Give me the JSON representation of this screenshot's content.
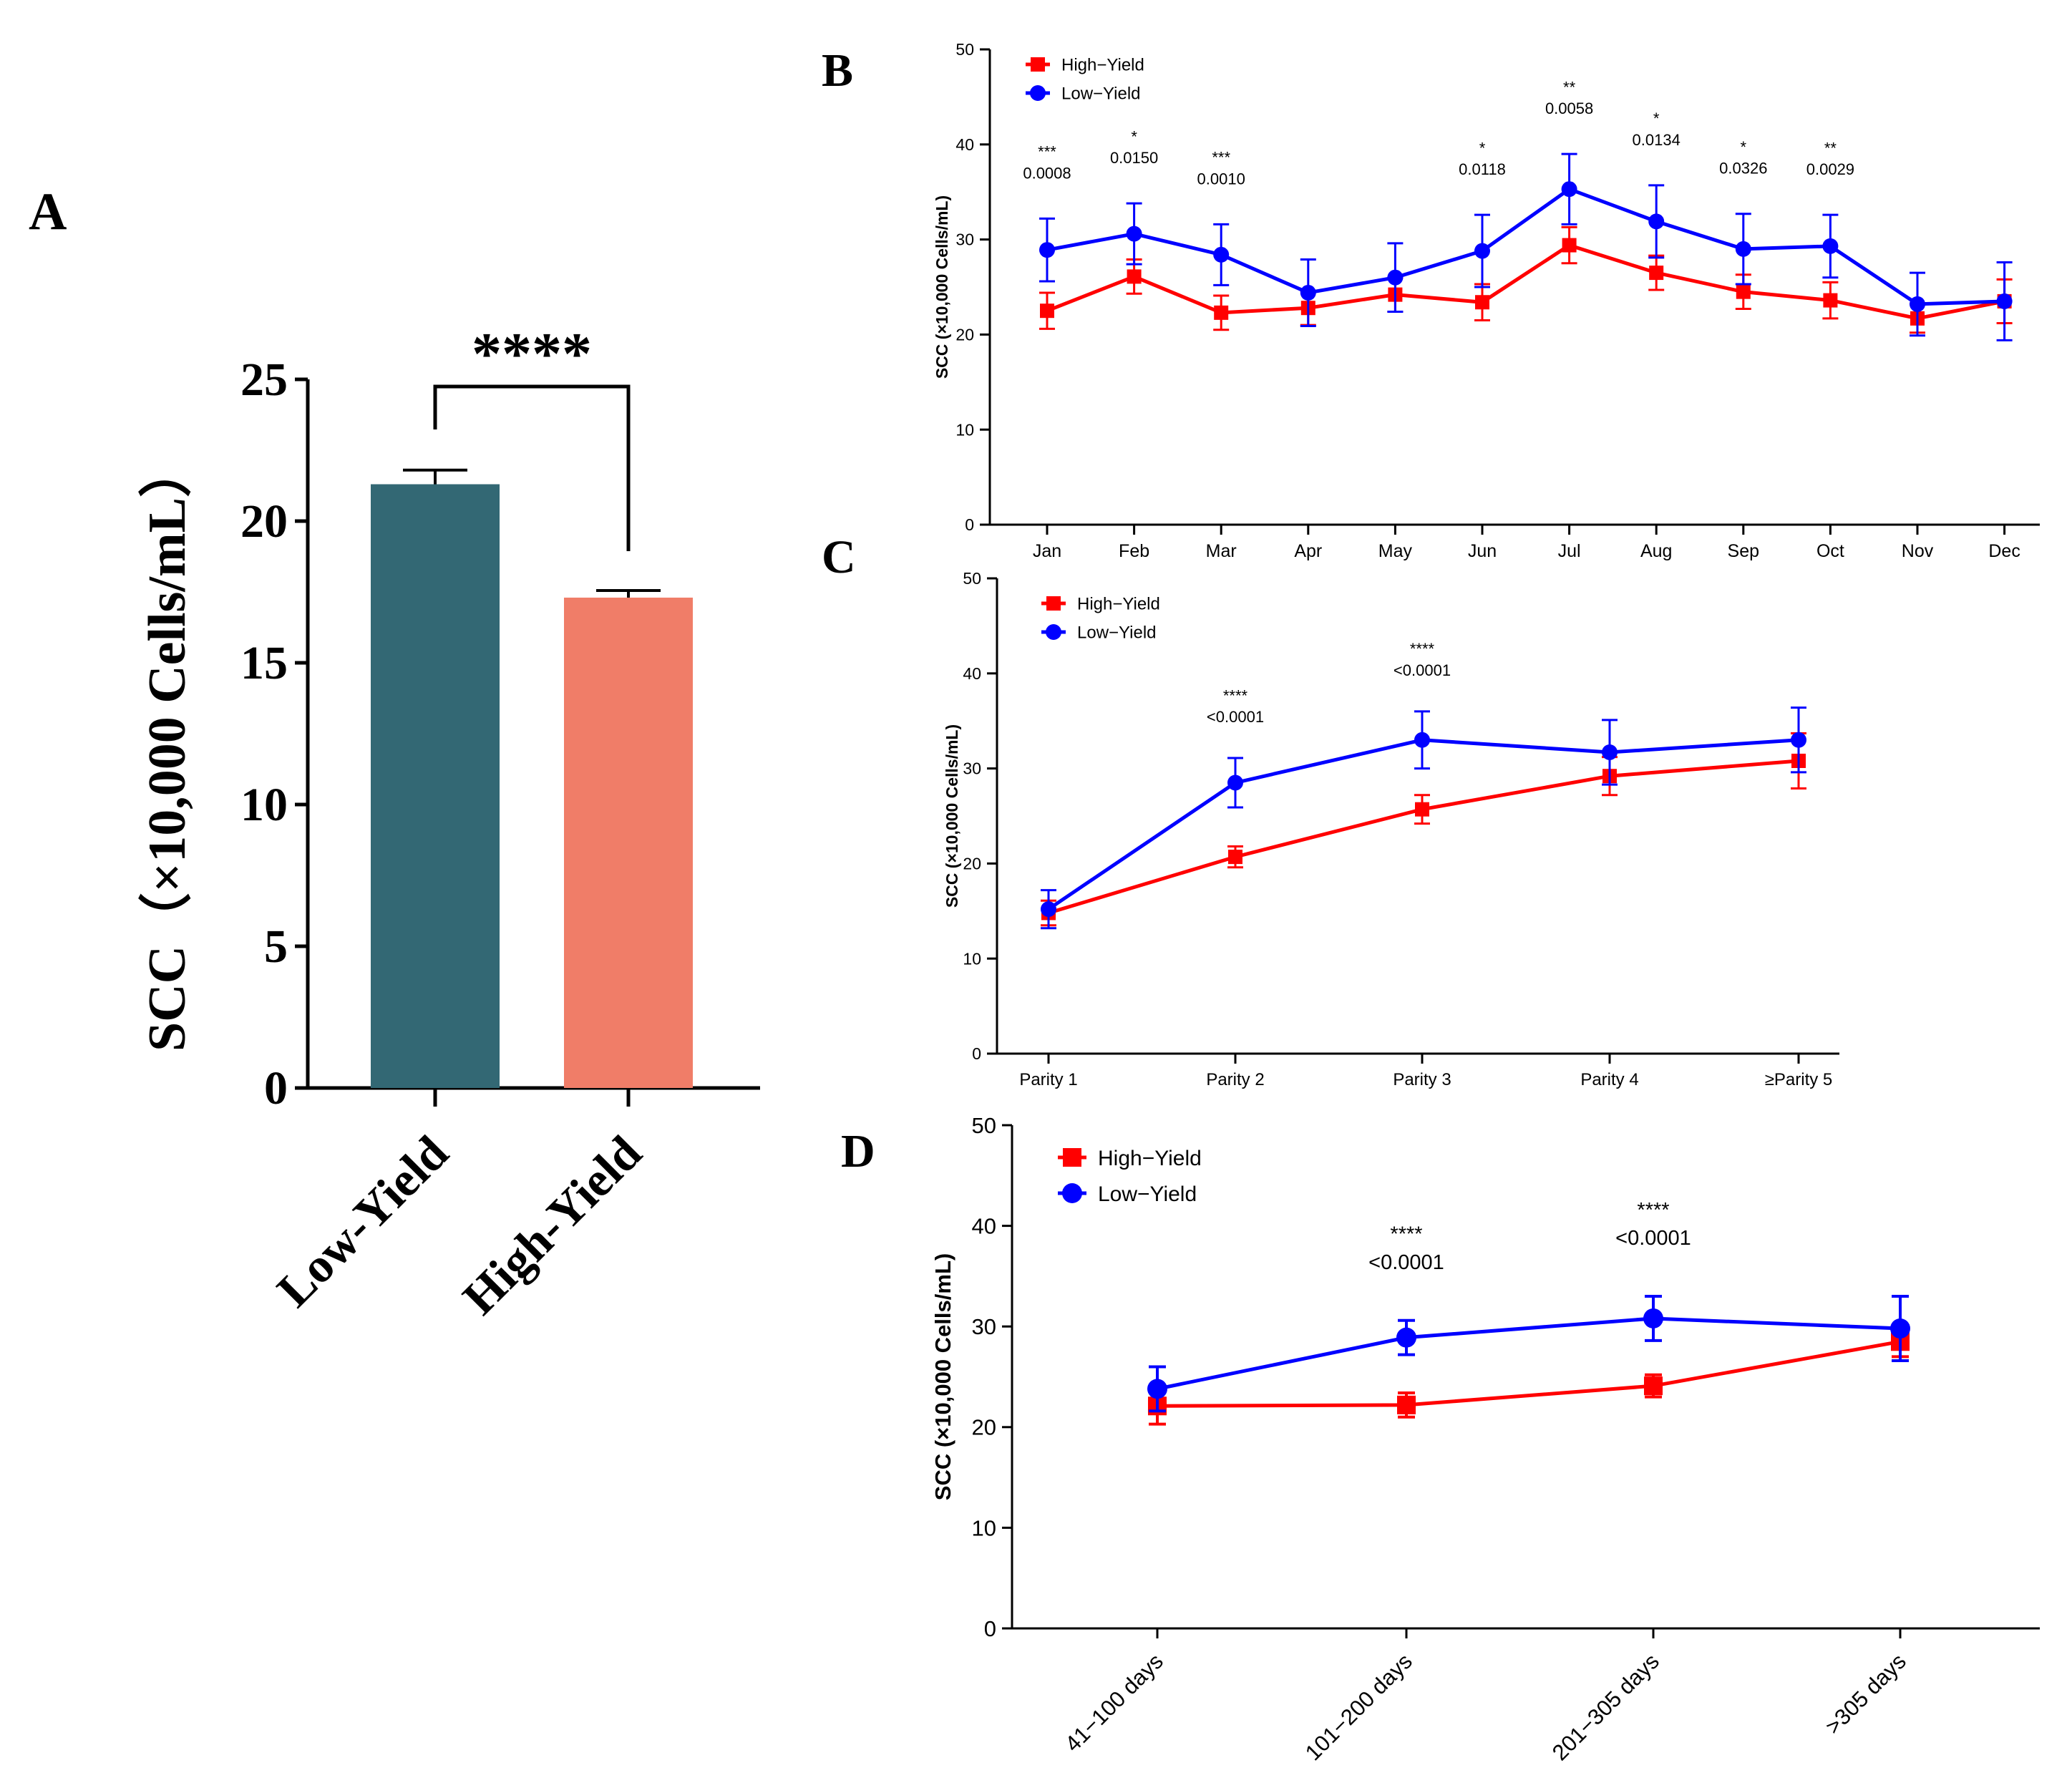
{
  "chart_data": [
    {
      "panel": "A",
      "type": "bar",
      "categories": [
        "Low-Yield",
        "High-Yield"
      ],
      "values": [
        21.3,
        17.3
      ],
      "errors": [
        0.5,
        0.25
      ],
      "colors": [
        "#336874",
        "#f07d68"
      ],
      "ylabel": "SCC（×10,000 Cells/mL）",
      "ylim": [
        0,
        25
      ],
      "yticks": [
        "0",
        "5",
        "10",
        "15",
        "20",
        "25"
      ],
      "significance": "****"
    },
    {
      "panel": "B",
      "type": "line",
      "categories": [
        "Jan",
        "Feb",
        "Mar",
        "Apr",
        "May",
        "Jun",
        "Jul",
        "Aug",
        "Sep",
        "Oct",
        "Nov",
        "Dec"
      ],
      "ylabel": "SCC (×10,000 Cells/mL)",
      "ylim": [
        0,
        50
      ],
      "yticks": [
        "0",
        "10",
        "20",
        "30",
        "40",
        "50"
      ],
      "series": [
        {
          "name": "High−Yield",
          "color": "#ff0000",
          "marker": "square",
          "values": [
            22.5,
            26.1,
            22.3,
            22.8,
            24.2,
            23.4,
            29.4,
            26.5,
            24.5,
            23.6,
            21.7,
            23.5
          ],
          "errors": [
            1.9,
            1.8,
            1.8,
            1.8,
            1.8,
            1.9,
            1.9,
            1.8,
            1.8,
            1.9,
            1.5,
            2.3
          ]
        },
        {
          "name": "Low−Yield",
          "color": "#0000ff",
          "marker": "circle",
          "values": [
            28.9,
            30.6,
            28.4,
            24.4,
            26.0,
            28.8,
            35.3,
            31.9,
            29.0,
            29.3,
            23.2,
            23.5
          ],
          "errors": [
            3.3,
            3.2,
            3.2,
            3.5,
            3.6,
            3.8,
            3.7,
            3.8,
            3.7,
            3.3,
            3.3,
            4.1
          ]
        }
      ],
      "annotations": [
        {
          "category": "Jan",
          "stars": "***",
          "p": "0.0008"
        },
        {
          "category": "Feb",
          "stars": "*",
          "p": "0.0150"
        },
        {
          "category": "Mar",
          "stars": "***",
          "p": "0.0010"
        },
        {
          "category": "Jun",
          "stars": "*",
          "p": "0.0118"
        },
        {
          "category": "Jul",
          "stars": "**",
          "p": "0.0058"
        },
        {
          "category": "Aug",
          "stars": "*",
          "p": "0.0134"
        },
        {
          "category": "Sep",
          "stars": "*",
          "p": "0.0326"
        },
        {
          "category": "Oct",
          "stars": "**",
          "p": "0.0029"
        }
      ]
    },
    {
      "panel": "C",
      "type": "line",
      "categories": [
        "Parity 1",
        "Parity 2",
        "Parity 3",
        "Parity 4",
        "≥Parity 5"
      ],
      "ylabel": "SCC (×10,000 Cells/mL)",
      "ylim": [
        0,
        50
      ],
      "yticks": [
        "0",
        "10",
        "20",
        "30",
        "40",
        "50"
      ],
      "series": [
        {
          "name": "High−Yield",
          "color": "#ff0000",
          "marker": "square",
          "values": [
            14.8,
            20.7,
            25.7,
            29.2,
            30.8
          ],
          "errors": [
            1.3,
            1.1,
            1.5,
            2.0,
            2.9
          ]
        },
        {
          "name": "Low−Yield",
          "color": "#0000ff",
          "marker": "circle",
          "values": [
            15.2,
            28.5,
            33.0,
            31.7,
            33.0
          ],
          "errors": [
            2.0,
            2.6,
            3.0,
            3.4,
            3.4
          ]
        }
      ],
      "annotations": [
        {
          "category": "Parity 2",
          "stars": "****",
          "p": "<0.0001"
        },
        {
          "category": "Parity 3",
          "stars": "****",
          "p": "<0.0001"
        }
      ]
    },
    {
      "panel": "D",
      "type": "line",
      "categories": [
        "41−100 days",
        "101−200 days",
        "201−305 days",
        ">305 days"
      ],
      "ylabel": "SCC (×10,000 Cells/mL)",
      "ylim": [
        0,
        50
      ],
      "yticks": [
        "0",
        "10",
        "20",
        "30",
        "40",
        "50"
      ],
      "series": [
        {
          "name": "High−Yield",
          "color": "#ff0000",
          "marker": "square",
          "values": [
            22.1,
            22.2,
            24.1,
            28.5
          ],
          "errors": [
            1.8,
            1.2,
            1.1,
            1.5
          ]
        },
        {
          "name": "Low−Yield",
          "color": "#0000ff",
          "marker": "circle",
          "values": [
            23.8,
            28.9,
            30.8,
            29.8
          ],
          "errors": [
            2.2,
            1.7,
            2.2,
            3.2
          ]
        }
      ],
      "annotations": [
        {
          "category": "101−200 days",
          "stars": "****",
          "p": "<0.0001"
        },
        {
          "category": "201−305 days",
          "stars": "****",
          "p": "<0.0001"
        }
      ]
    }
  ]
}
